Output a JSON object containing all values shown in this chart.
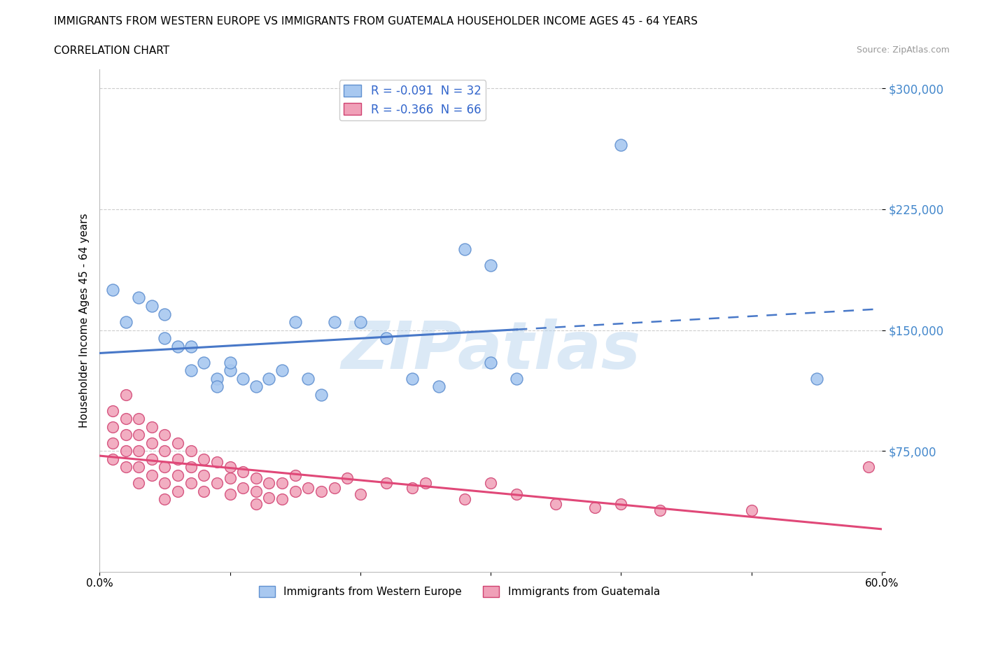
{
  "title": "IMMIGRANTS FROM WESTERN EUROPE VS IMMIGRANTS FROM GUATEMALA HOUSEHOLDER INCOME AGES 45 - 64 YEARS",
  "subtitle": "CORRELATION CHART",
  "source": "Source: ZipAtlas.com",
  "ylabel": "Householder Income Ages 45 - 64 years",
  "xlim": [
    0,
    0.6
  ],
  "ylim": [
    0,
    312000
  ],
  "yticks": [
    0,
    75000,
    150000,
    225000,
    300000
  ],
  "ytick_labels": [
    "",
    "$75,000",
    "$150,000",
    "$225,000",
    "$300,000"
  ],
  "legend_r1": "R = -0.091  N = 32",
  "legend_r2": "R = -0.366  N = 66",
  "legend_label1": "Immigrants from Western Europe",
  "legend_label2": "Immigrants from Guatemala",
  "color_blue": "#a8c8f0",
  "color_pink": "#f0a0b8",
  "color_blue_line": "#4878c8",
  "color_pink_line": "#e04878",
  "color_blue_edge": "#6090d0",
  "color_pink_edge": "#d04070",
  "western_europe_x": [
    0.01,
    0.02,
    0.03,
    0.04,
    0.05,
    0.05,
    0.06,
    0.07,
    0.07,
    0.08,
    0.09,
    0.09,
    0.1,
    0.1,
    0.11,
    0.12,
    0.13,
    0.14,
    0.15,
    0.16,
    0.17,
    0.18,
    0.2,
    0.22,
    0.24,
    0.26,
    0.28,
    0.3,
    0.3,
    0.32,
    0.4,
    0.55
  ],
  "western_europe_y": [
    175000,
    155000,
    170000,
    165000,
    145000,
    160000,
    140000,
    140000,
    125000,
    130000,
    120000,
    115000,
    125000,
    130000,
    120000,
    115000,
    120000,
    125000,
    155000,
    120000,
    110000,
    155000,
    155000,
    145000,
    120000,
    115000,
    200000,
    190000,
    130000,
    120000,
    265000,
    120000
  ],
  "guatemala_x": [
    0.01,
    0.01,
    0.01,
    0.01,
    0.02,
    0.02,
    0.02,
    0.02,
    0.02,
    0.03,
    0.03,
    0.03,
    0.03,
    0.03,
    0.04,
    0.04,
    0.04,
    0.04,
    0.05,
    0.05,
    0.05,
    0.05,
    0.05,
    0.06,
    0.06,
    0.06,
    0.06,
    0.07,
    0.07,
    0.07,
    0.08,
    0.08,
    0.08,
    0.09,
    0.09,
    0.1,
    0.1,
    0.1,
    0.11,
    0.11,
    0.12,
    0.12,
    0.12,
    0.13,
    0.13,
    0.14,
    0.14,
    0.15,
    0.15,
    0.16,
    0.17,
    0.18,
    0.19,
    0.2,
    0.22,
    0.24,
    0.25,
    0.28,
    0.3,
    0.32,
    0.35,
    0.38,
    0.4,
    0.43,
    0.5,
    0.59
  ],
  "guatemala_y": [
    100000,
    90000,
    80000,
    70000,
    110000,
    95000,
    85000,
    75000,
    65000,
    95000,
    85000,
    75000,
    65000,
    55000,
    90000,
    80000,
    70000,
    60000,
    85000,
    75000,
    65000,
    55000,
    45000,
    80000,
    70000,
    60000,
    50000,
    75000,
    65000,
    55000,
    70000,
    60000,
    50000,
    68000,
    55000,
    65000,
    58000,
    48000,
    62000,
    52000,
    58000,
    50000,
    42000,
    55000,
    46000,
    55000,
    45000,
    60000,
    50000,
    52000,
    50000,
    52000,
    58000,
    48000,
    55000,
    52000,
    55000,
    45000,
    55000,
    48000,
    42000,
    40000,
    42000,
    38000,
    38000,
    65000
  ],
  "watermark_text": "ZIPatlas",
  "background_color": "#ffffff",
  "grid_color": "#cccccc"
}
